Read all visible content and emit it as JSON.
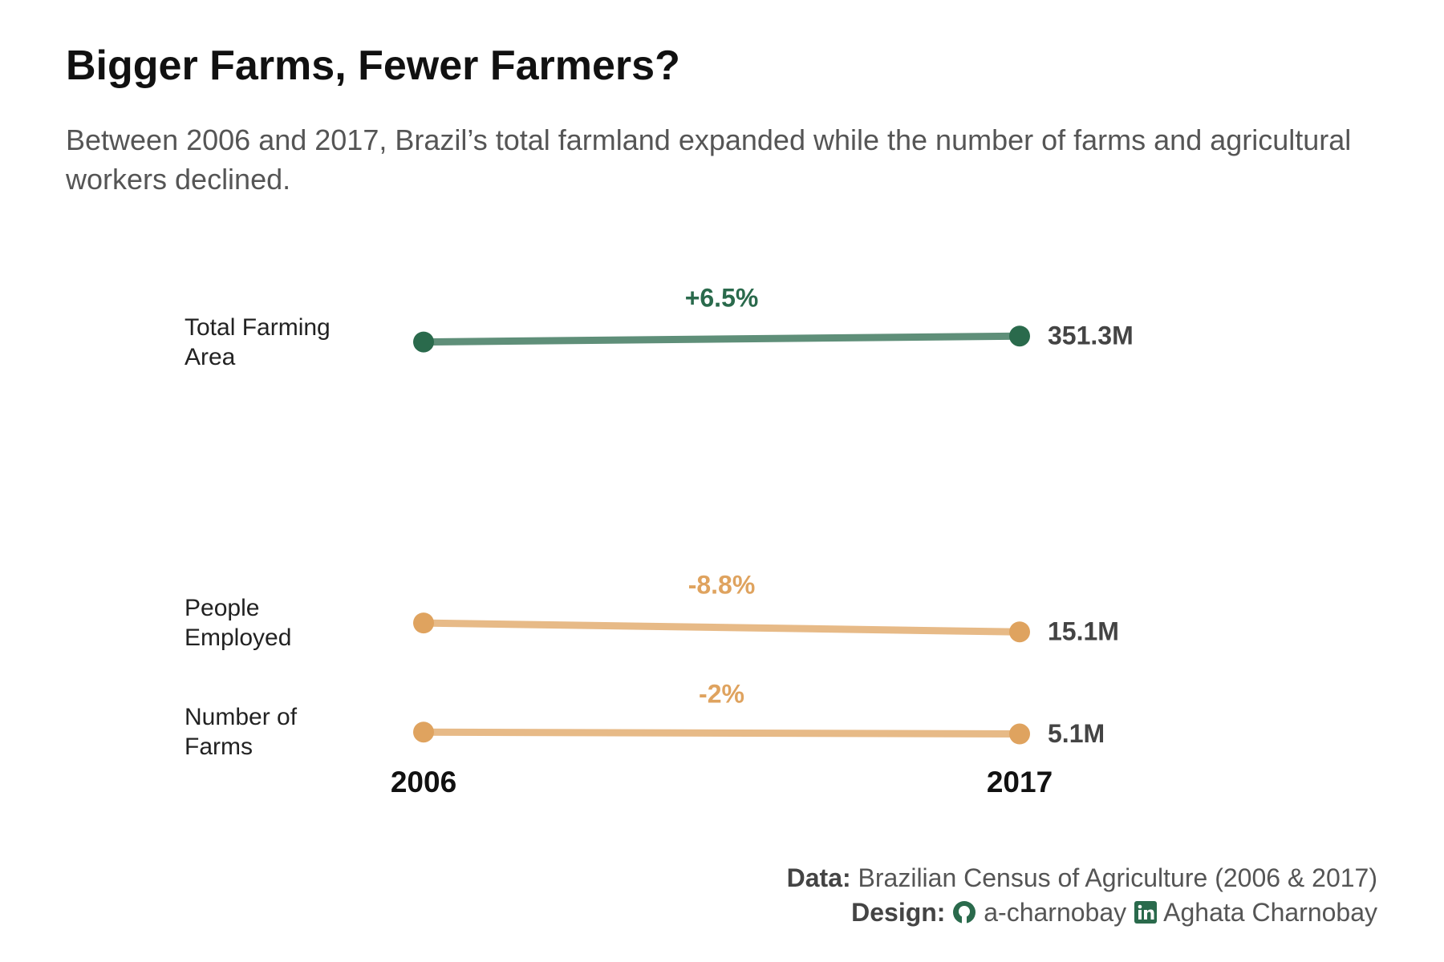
{
  "chart_data": {
    "type": "slope",
    "title": "Bigger Farms, Fewer Farmers?",
    "subtitle": "Between 2006 and 2017, Brazil’s total farmland expanded while the number of farms and agricultural workers declined.",
    "categories": [
      "2006",
      "2017"
    ],
    "log_scale": true,
    "ylim": [
      4,
      400
    ],
    "series": [
      {
        "name": "Total Farming Area",
        "color": "#2a6a4c",
        "values": [
          329.9,
          351.3
        ],
        "value_labels": [
          null,
          "351.3M"
        ],
        "change_label": "+6.5%"
      },
      {
        "name": "People Employed",
        "color": "#dfa35f",
        "values": [
          16.6,
          15.1
        ],
        "value_labels": [
          null,
          "15.1M"
        ],
        "change_label": "-8.8%"
      },
      {
        "name": "Number of Farms",
        "color": "#dfa35f",
        "values": [
          5.2,
          5.1
        ],
        "value_labels": [
          null,
          "5.1M"
        ],
        "change_label": "-2%"
      }
    ]
  },
  "footer": {
    "data_label": "Data:",
    "data_text": "Brazilian Census of Agriculture (2006 & 2017)",
    "design_label": "Design:",
    "github": "a-charnobay",
    "linkedin": "Aghata Charnobay"
  }
}
